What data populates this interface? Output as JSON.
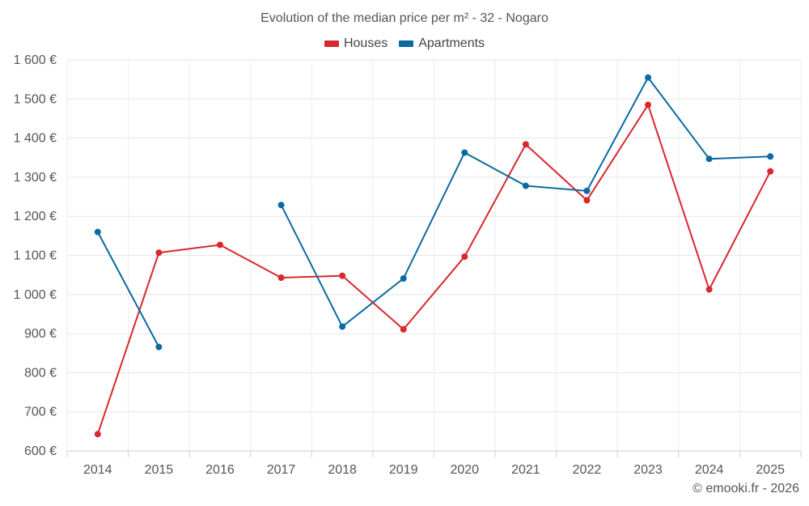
{
  "chart_data": {
    "type": "line",
    "title": "Evolution of the median price per m² - 32 - Nogaro",
    "categories": [
      "2014",
      "2015",
      "2016",
      "2017",
      "2018",
      "2019",
      "2020",
      "2021",
      "2022",
      "2023",
      "2024",
      "2025"
    ],
    "series": [
      {
        "name": "Houses",
        "color": "#d7282f",
        "values": [
          643,
          1107,
          1127,
          1043,
          1048,
          911,
          1097,
          1384,
          1241,
          1485,
          1013,
          1315
        ]
      },
      {
        "name": "Apartments",
        "color": "#0a6aa1",
        "values": [
          1160,
          866,
          null,
          1229,
          918,
          1041,
          1363,
          1278,
          1265,
          1555,
          1347,
          1353
        ]
      }
    ],
    "ylim": [
      600,
      1600
    ],
    "yticks": [
      600,
      700,
      800,
      900,
      1000,
      1100,
      1200,
      1300,
      1400,
      1500,
      1600
    ],
    "ytick_labels": [
      "600 €",
      "700 €",
      "800 €",
      "900 €",
      "1 000 €",
      "1 100 €",
      "1 200 €",
      "1 300 €",
      "1 400 €",
      "1 500 €",
      "1 600 €"
    ],
    "grid": true,
    "legend_position": "top-center",
    "xlabel": "",
    "ylabel": ""
  },
  "credit": "© emooki.fr - 2026"
}
